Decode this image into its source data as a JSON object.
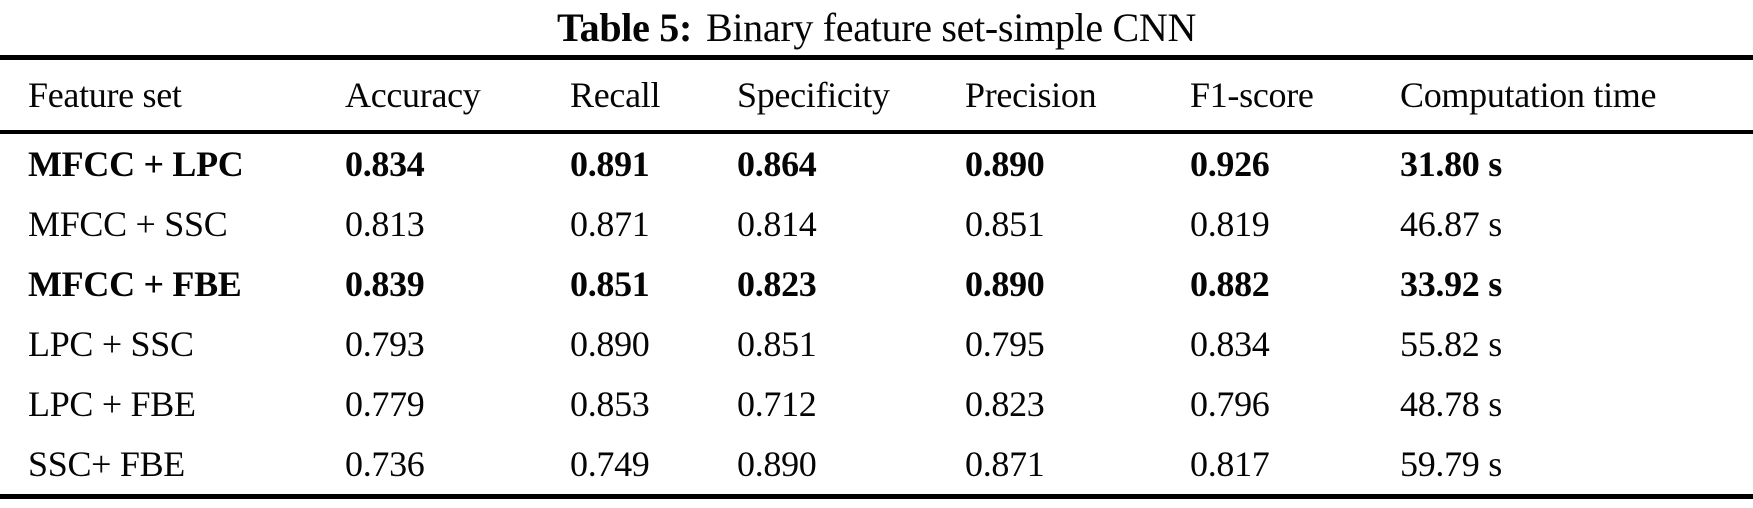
{
  "caption": {
    "label": "Table 5:",
    "text": "Binary feature set-simple CNN"
  },
  "table": {
    "columns": [
      "Feature set",
      "Accuracy",
      "Recall",
      "Specificity",
      "Precision",
      "F1-score",
      "Computation time"
    ],
    "rows": [
      {
        "bold": true,
        "cells": [
          "MFCC + LPC",
          "0.834",
          "0.891",
          "0.864",
          "0.890",
          "0.926",
          "31.80 s"
        ]
      },
      {
        "bold": false,
        "cells": [
          "MFCC + SSC",
          "0.813",
          "0.871",
          "0.814",
          "0.851",
          "0.819",
          "46.87 s"
        ]
      },
      {
        "bold": true,
        "cells": [
          "MFCC + FBE",
          "0.839",
          "0.851",
          "0.823",
          "0.890",
          "0.882",
          "33.92 s"
        ]
      },
      {
        "bold": false,
        "cells": [
          "LPC + SSC",
          "0.793",
          "0.890",
          "0.851",
          "0.795",
          "0.834",
          "55.82 s"
        ]
      },
      {
        "bold": false,
        "cells": [
          "LPC + FBE",
          "0.779",
          "0.853",
          "0.712",
          "0.823",
          "0.796",
          "48.78 s"
        ]
      },
      {
        "bold": false,
        "cells": [
          "SSC+ FBE",
          "0.736",
          "0.749",
          "0.890",
          "0.871",
          "0.817",
          "59.79 s"
        ]
      }
    ]
  },
  "colors": {
    "text": "#050505",
    "background": "#ffffff",
    "rule": "#000000"
  }
}
